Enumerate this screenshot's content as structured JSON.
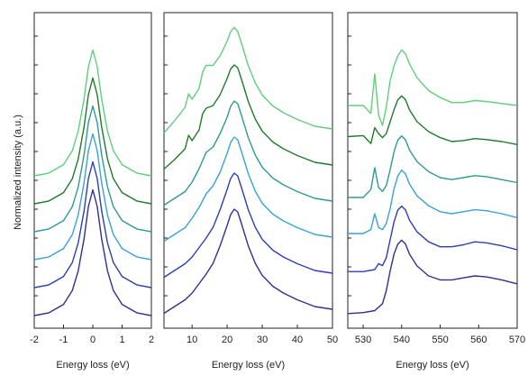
{
  "figure": {
    "ylabel": "Normalized intensity (a.u.)",
    "colors": [
      "#2e3190",
      "#2c3fb3",
      "#3aa2d6",
      "#2f9a93",
      "#1f7a2a",
      "#5fcf7a"
    ]
  },
  "chart_data": [
    {
      "type": "line",
      "title": "",
      "xlabel": "Energy loss (eV)",
      "ylabel": "Normalized intensity (a.u.)",
      "xlim": [
        -2,
        2
      ],
      "xticks": [
        -2,
        -1,
        0,
        1,
        2
      ],
      "tick_labels": [
        "-2",
        "-1",
        "0",
        "1",
        "2"
      ],
      "series": [
        {
          "x": [
            -2,
            -1.5,
            -1,
            -0.7,
            -0.5,
            -0.3,
            -0.15,
            0,
            0.15,
            0.3,
            0.5,
            0.7,
            1,
            1.5,
            2
          ],
          "y": [
            0.0,
            0.02,
            0.08,
            0.18,
            0.32,
            0.55,
            0.78,
            0.9,
            0.78,
            0.55,
            0.32,
            0.18,
            0.08,
            0.02,
            0.0
          ]
        },
        {
          "x": [
            -2,
            -1.5,
            -1,
            -0.7,
            -0.5,
            -0.3,
            -0.15,
            0,
            0.15,
            0.3,
            0.5,
            0.7,
            1,
            1.5,
            2
          ],
          "y": [
            0.0,
            0.02,
            0.08,
            0.18,
            0.32,
            0.55,
            0.78,
            0.9,
            0.78,
            0.55,
            0.32,
            0.18,
            0.08,
            0.02,
            0.0
          ]
        },
        {
          "x": [
            -2,
            -1.5,
            -1,
            -0.7,
            -0.5,
            -0.3,
            -0.15,
            0,
            0.15,
            0.3,
            0.5,
            0.7,
            1,
            1.5,
            2
          ],
          "y": [
            0.0,
            0.02,
            0.08,
            0.18,
            0.32,
            0.55,
            0.78,
            0.9,
            0.78,
            0.55,
            0.32,
            0.18,
            0.08,
            0.02,
            0.0
          ]
        },
        {
          "x": [
            -2,
            -1.5,
            -1,
            -0.7,
            -0.5,
            -0.3,
            -0.15,
            0,
            0.15,
            0.3,
            0.5,
            0.7,
            1,
            1.5,
            2
          ],
          "y": [
            0.0,
            0.02,
            0.08,
            0.18,
            0.32,
            0.55,
            0.78,
            0.9,
            0.78,
            0.55,
            0.32,
            0.18,
            0.08,
            0.02,
            0.0
          ]
        },
        {
          "x": [
            -2,
            -1.5,
            -1,
            -0.7,
            -0.5,
            -0.3,
            -0.15,
            0,
            0.15,
            0.3,
            0.5,
            0.7,
            1,
            1.5,
            2
          ],
          "y": [
            0.0,
            0.02,
            0.08,
            0.18,
            0.32,
            0.55,
            0.78,
            0.9,
            0.78,
            0.55,
            0.32,
            0.18,
            0.08,
            0.02,
            0.0
          ]
        },
        {
          "x": [
            -2,
            -1.5,
            -1,
            -0.7,
            -0.5,
            -0.3,
            -0.15,
            0,
            0.15,
            0.3,
            0.5,
            0.7,
            1,
            1.5,
            2
          ],
          "y": [
            0.0,
            0.02,
            0.08,
            0.18,
            0.32,
            0.55,
            0.78,
            0.9,
            0.78,
            0.55,
            0.32,
            0.18,
            0.08,
            0.02,
            0.0
          ]
        }
      ]
    },
    {
      "type": "line",
      "title": "",
      "xlabel": "Energy loss (eV)",
      "ylabel": "",
      "xlim": [
        2,
        50
      ],
      "xticks": [
        10,
        20,
        30,
        40,
        50
      ],
      "tick_labels": [
        "10",
        "20",
        "30",
        "40",
        "50"
      ],
      "series": [
        {
          "x": [
            2,
            5,
            8,
            10,
            12,
            14,
            16,
            18,
            20,
            21,
            22,
            23,
            24,
            26,
            28,
            30,
            33,
            36,
            40,
            45,
            50
          ],
          "y": [
            0.05,
            0.1,
            0.15,
            0.2,
            0.27,
            0.34,
            0.42,
            0.55,
            0.7,
            0.78,
            0.82,
            0.8,
            0.72,
            0.55,
            0.42,
            0.33,
            0.25,
            0.2,
            0.15,
            0.1,
            0.08
          ]
        },
        {
          "x": [
            2,
            5,
            8,
            10,
            12,
            14,
            16,
            18,
            20,
            21,
            22,
            23,
            24,
            26,
            28,
            30,
            33,
            36,
            40,
            45,
            50
          ],
          "y": [
            0.05,
            0.1,
            0.15,
            0.2,
            0.27,
            0.34,
            0.42,
            0.55,
            0.7,
            0.78,
            0.82,
            0.8,
            0.72,
            0.55,
            0.42,
            0.33,
            0.25,
            0.2,
            0.15,
            0.1,
            0.08
          ]
        },
        {
          "x": [
            2,
            5,
            8,
            10,
            12,
            14,
            16,
            18,
            20,
            21,
            22,
            23,
            24,
            26,
            28,
            30,
            33,
            36,
            40,
            45,
            50
          ],
          "y": [
            0.05,
            0.1,
            0.15,
            0.22,
            0.3,
            0.4,
            0.46,
            0.56,
            0.7,
            0.78,
            0.82,
            0.8,
            0.72,
            0.55,
            0.42,
            0.33,
            0.25,
            0.2,
            0.15,
            0.1,
            0.08
          ]
        },
        {
          "x": [
            2,
            5,
            8,
            10,
            12,
            14,
            16,
            18,
            20,
            21,
            22,
            23,
            24,
            26,
            28,
            30,
            33,
            36,
            40,
            45,
            50
          ],
          "y": [
            0.05,
            0.1,
            0.15,
            0.22,
            0.32,
            0.44,
            0.48,
            0.58,
            0.7,
            0.78,
            0.82,
            0.8,
            0.72,
            0.55,
            0.42,
            0.33,
            0.25,
            0.2,
            0.15,
            0.1,
            0.08
          ]
        },
        {
          "x": [
            2,
            5,
            8,
            9,
            10,
            12,
            13,
            14,
            16,
            18,
            20,
            21,
            22,
            23,
            24,
            26,
            28,
            30,
            33,
            36,
            40,
            45,
            50
          ],
          "y": [
            0.05,
            0.12,
            0.2,
            0.3,
            0.26,
            0.34,
            0.46,
            0.5,
            0.52,
            0.6,
            0.72,
            0.79,
            0.82,
            0.8,
            0.72,
            0.55,
            0.42,
            0.33,
            0.25,
            0.2,
            0.15,
            0.1,
            0.08
          ]
        },
        {
          "x": [
            2,
            5,
            8,
            9,
            10,
            12,
            13,
            14,
            16,
            18,
            20,
            21,
            22,
            23,
            24,
            26,
            28,
            30,
            33,
            36,
            40,
            45,
            50
          ],
          "y": [
            0.05,
            0.14,
            0.24,
            0.34,
            0.3,
            0.38,
            0.5,
            0.55,
            0.55,
            0.62,
            0.73,
            0.8,
            0.83,
            0.8,
            0.72,
            0.55,
            0.42,
            0.33,
            0.25,
            0.2,
            0.15,
            0.1,
            0.08
          ]
        }
      ]
    },
    {
      "type": "line",
      "title": "",
      "xlabel": "Energy loss (eV)",
      "ylabel": "",
      "xlim": [
        526,
        570
      ],
      "xticks": [
        530,
        540,
        550,
        560,
        570
      ],
      "tick_labels": [
        "530",
        "540",
        "550",
        "560",
        "570"
      ],
      "series": [
        {
          "x": [
            526,
            530,
            533,
            535,
            536,
            537,
            538,
            539,
            540,
            541,
            542,
            544,
            547,
            550,
            553,
            556,
            559,
            562,
            566,
            570
          ],
          "y": [
            0.02,
            0.03,
            0.05,
            0.12,
            0.25,
            0.45,
            0.62,
            0.72,
            0.76,
            0.72,
            0.62,
            0.5,
            0.4,
            0.36,
            0.36,
            0.38,
            0.4,
            0.39,
            0.36,
            0.32
          ]
        },
        {
          "x": [
            526,
            530,
            533,
            534,
            535,
            536,
            537,
            538,
            539,
            540,
            541,
            542,
            544,
            547,
            550,
            553,
            556,
            559,
            562,
            566,
            570
          ],
          "y": [
            0.08,
            0.08,
            0.1,
            0.16,
            0.14,
            0.22,
            0.4,
            0.58,
            0.7,
            0.74,
            0.7,
            0.6,
            0.48,
            0.38,
            0.33,
            0.33,
            0.35,
            0.38,
            0.37,
            0.34,
            0.3
          ]
        },
        {
          "x": [
            526,
            530,
            532,
            533,
            534,
            535,
            536,
            537,
            538,
            539,
            540,
            541,
            542,
            544,
            547,
            550,
            553,
            556,
            559,
            562,
            566,
            570
          ],
          "y": [
            0.1,
            0.1,
            0.14,
            0.3,
            0.16,
            0.14,
            0.2,
            0.35,
            0.55,
            0.68,
            0.74,
            0.7,
            0.6,
            0.48,
            0.38,
            0.32,
            0.3,
            0.32,
            0.34,
            0.33,
            0.3,
            0.26
          ]
        },
        {
          "x": [
            526,
            530,
            532,
            533,
            534,
            535,
            536,
            537,
            538,
            539,
            540,
            541,
            542,
            544,
            547,
            550,
            553,
            556,
            559,
            562,
            566,
            570
          ],
          "y": [
            0.1,
            0.1,
            0.18,
            0.4,
            0.2,
            0.16,
            0.22,
            0.38,
            0.56,
            0.68,
            0.72,
            0.68,
            0.58,
            0.46,
            0.36,
            0.3,
            0.28,
            0.3,
            0.32,
            0.31,
            0.28,
            0.25
          ]
        },
        {
          "x": [
            526,
            530,
            531,
            532,
            533,
            534,
            535,
            536,
            537,
            538,
            539,
            540,
            541,
            542,
            544,
            547,
            550,
            553,
            556,
            559,
            562,
            566,
            570
          ],
          "y": [
            0.35,
            0.36,
            0.32,
            0.28,
            0.44,
            0.38,
            0.34,
            0.38,
            0.5,
            0.62,
            0.72,
            0.76,
            0.72,
            0.62,
            0.5,
            0.4,
            0.34,
            0.3,
            0.31,
            0.33,
            0.32,
            0.3,
            0.27
          ]
        },
        {
          "x": [
            526,
            530,
            531,
            532,
            533,
            534,
            535,
            536,
            537,
            538,
            539,
            540,
            541,
            542,
            544,
            547,
            550,
            553,
            556,
            559,
            562,
            566,
            570
          ],
          "y": [
            0.3,
            0.3,
            0.26,
            0.22,
            0.62,
            0.2,
            0.1,
            0.28,
            0.55,
            0.7,
            0.8,
            0.86,
            0.82,
            0.72,
            0.58,
            0.45,
            0.38,
            0.33,
            0.33,
            0.35,
            0.34,
            0.32,
            0.3
          ]
        }
      ]
    }
  ]
}
